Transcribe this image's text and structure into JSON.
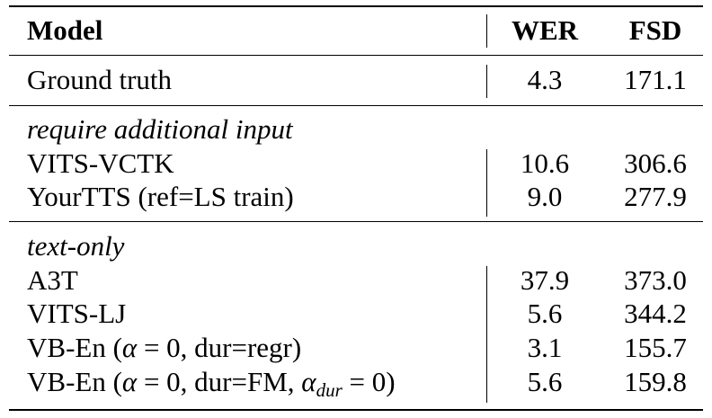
{
  "header": {
    "model": "Model",
    "wer": "WER",
    "fsd": "FSD"
  },
  "ground_truth": {
    "model": "Ground truth",
    "wer": "4.3",
    "fsd": "171.1"
  },
  "groups": [
    {
      "label": "require additional input",
      "rows": [
        {
          "model": "VITS-VCTK",
          "wer": "10.6",
          "fsd": "306.6"
        },
        {
          "model": "YourTTS (ref=LS train)",
          "wer": "9.0",
          "fsd": "277.9"
        }
      ]
    },
    {
      "label": "text-only",
      "rows": [
        {
          "model": "A3T",
          "wer": "37.9",
          "fsd": "373.0"
        },
        {
          "model": "VITS-LJ",
          "wer": "5.6",
          "fsd": "344.2"
        },
        {
          "model_prefix": "VB-En (",
          "alpha": "α",
          "eq": " = 0, ",
          "model_suffix": "dur=regr)",
          "wer": "3.1",
          "fsd": "155.7"
        },
        {
          "model_prefix": "VB-En (",
          "alpha": "α",
          "eq": " = 0, dur=FM, ",
          "alpha2": "α",
          "sub": "dur",
          "eq2": " = 0)",
          "wer": "5.6",
          "fsd": "159.8"
        }
      ]
    }
  ]
}
